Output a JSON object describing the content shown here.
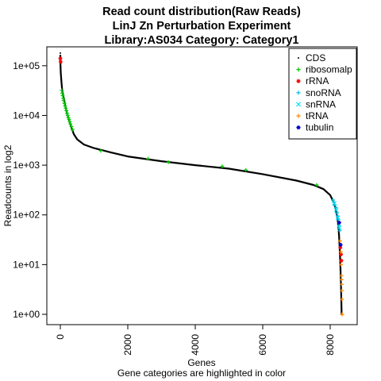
{
  "chart_data": {
    "type": "scatter",
    "title_lines": [
      "Read count distribution(Raw Reads)",
      "LinJ Zn Perturbation Experiment",
      "Library:AS034  Category: Category1"
    ],
    "xlabel": "Genes",
    "ylabel": "Readcounts in log2",
    "subtitle": "Gene categories are highlighted in color",
    "xlim": [
      -400,
      8800
    ],
    "ylim": [
      0.62,
      240000
    ],
    "y_scale": "log",
    "x_ticks": [
      0,
      2000,
      4000,
      6000,
      8000
    ],
    "x_tick_labels": [
      "0",
      "2000",
      "4000",
      "6000",
      "8000"
    ],
    "y_ticks": [
      1,
      10,
      100,
      1000,
      10000,
      100000
    ],
    "y_tick_labels": [
      "1e+00",
      "1e+01",
      "1e+02",
      "1e+03",
      "1e+04",
      "1e+05"
    ],
    "legend_position": "top-right",
    "curve": {
      "x": [
        0,
        5,
        15,
        30,
        60,
        100,
        150,
        200,
        250,
        300,
        350,
        400,
        500,
        700,
        1000,
        1500,
        2000,
        3000,
        4000,
        5000,
        6000,
        7000,
        7500,
        7800,
        8000,
        8100,
        8150,
        8200,
        8230,
        8260,
        8280,
        8300,
        8320,
        8340
      ],
      "y": [
        160000,
        100000,
        70000,
        50000,
        30000,
        22000,
        15000,
        11000,
        8500,
        6500,
        5200,
        4200,
        3300,
        2600,
        2200,
        1800,
        1500,
        1200,
        1000,
        850,
        660,
        490,
        400,
        330,
        250,
        180,
        140,
        100,
        70,
        40,
        22,
        10,
        4,
        1
      ]
    },
    "series": [
      {
        "name": "CDS",
        "color": "#000000",
        "marker": "dot",
        "x": [
          0,
          2,
          4,
          6,
          8,
          10
        ],
        "y": [
          180000,
          155000,
          140000,
          125000,
          110000,
          95000
        ]
      },
      {
        "name": "ribosomalp",
        "color": "#00cc00",
        "marker": "plus",
        "x": [
          40,
          55,
          70,
          85,
          100,
          120,
          140,
          160,
          180,
          200,
          220,
          240,
          260,
          280,
          300,
          330,
          360,
          1200,
          2600,
          3200,
          4800,
          5500,
          7600
        ],
        "y": [
          32000,
          28000,
          25000,
          22000,
          20000,
          17500,
          15500,
          14000,
          12500,
          11000,
          10000,
          9000,
          8300,
          7500,
          6800,
          6000,
          5200,
          1950,
          1350,
          1150,
          950,
          800,
          400
        ]
      },
      {
        "name": "rRNA",
        "color": "#ff0000",
        "marker": "star",
        "x": [
          0,
          8,
          8300,
          8320,
          8330
        ],
        "y": [
          140000,
          120000,
          22,
          16,
          12
        ]
      },
      {
        "name": "snoRNA",
        "color": "#00bbdd",
        "marker": "plus",
        "x": [
          8080,
          8110,
          8140,
          8170,
          8200,
          8220,
          8240,
          8260,
          8280
        ],
        "y": [
          200,
          180,
          160,
          140,
          110,
          95,
          80,
          62,
          48
        ]
      },
      {
        "name": "snRNA",
        "color": "#00e0ff",
        "marker": "cross",
        "x": [
          8120,
          8180,
          8230,
          8270
        ],
        "y": [
          170,
          125,
          88,
          55
        ]
      },
      {
        "name": "tRNA",
        "color": "#ff8800",
        "marker": "plus",
        "x": [
          8290,
          8310,
          8320,
          8330,
          8335,
          8340,
          8345,
          8350,
          8352,
          8355
        ],
        "y": [
          30,
          18,
          10,
          6,
          5,
          4,
          3,
          2,
          1,
          1
        ]
      },
      {
        "name": "tubulin",
        "color": "#0000cc",
        "marker": "star",
        "x": [
          8270,
          8310
        ],
        "y": [
          70,
          25
        ]
      }
    ]
  }
}
